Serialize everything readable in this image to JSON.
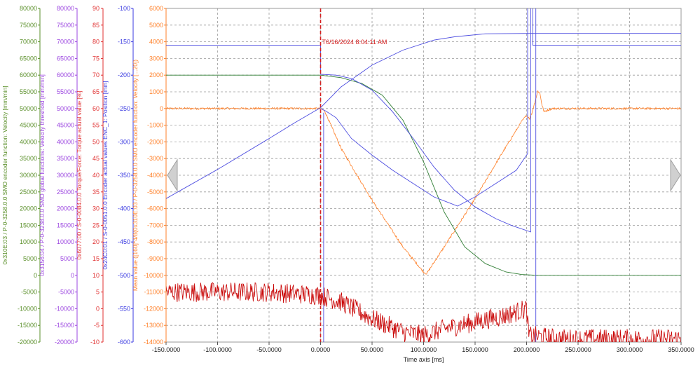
{
  "chart_data": {
    "type": "line",
    "grid": true,
    "x_axis": {
      "label": "Time axis [ms]",
      "range": [
        -150,
        350
      ],
      "ticks": [
        "-150.0000",
        "-100.0000",
        "-50.0000",
        "0.0000",
        "50.0000",
        "100.0000",
        "150.0000",
        "200.0000",
        "250.0000",
        "300.0000",
        "350.0000"
      ]
    },
    "y_axes": [
      {
        "id": "velocity",
        "label": "0x310E:03 / P-0-3258.0.0 SMO encoder function: Velocity [mm/min]",
        "color": "#5a8f29",
        "range": [
          -20000,
          80000
        ],
        "ticks": [
          "80000",
          "75000",
          "70000",
          "65000",
          "60000",
          "55000",
          "50000",
          "45000",
          "40000",
          "35000",
          "30000",
          "25000",
          "20000",
          "15000",
          "10000",
          "5000",
          "0",
          "-5000",
          "-10000",
          "-15000",
          "-20000"
        ]
      },
      {
        "id": "threshold",
        "label": "0x3156:04 / P-0-3238.0.0 SMO global functions: Velocity threshold [mm/min]",
        "color": "#9b45e0",
        "range": [
          -20000,
          80000
        ],
        "ticks": [
          "80000",
          "75000",
          "70000",
          "65000",
          "60000",
          "55000",
          "50000",
          "45000",
          "40000",
          "35000",
          "30000",
          "25000",
          "20000",
          "15000",
          "10000",
          "5000",
          "0",
          "-5000",
          "-10000",
          "-15000",
          "-20000"
        ]
      },
      {
        "id": "torque",
        "label": "0x6077:00 / S-0-0084.0.0 Torque/Force: Torque actual value [%]",
        "color": "#e03030",
        "range": [
          -10,
          90
        ],
        "ticks": [
          "90",
          "85",
          "80",
          "75",
          "70",
          "65",
          "60",
          "55",
          "50",
          "45",
          "40",
          "35",
          "30",
          "25",
          "20",
          "15",
          "10",
          "5",
          "0",
          "-5",
          "-10"
        ]
      },
      {
        "id": "position",
        "label": "0x24C0:01 / S-0-0051.0.0 Encoder actual values ENC_1: Position [mm]",
        "color": "#3a3ae0",
        "range": [
          -600,
          -100
        ],
        "ticks": [
          "-100",
          "-150",
          "-200",
          "-250",
          "-300",
          "-350",
          "-400",
          "-450",
          "-500",
          "-550",
          "-600"
        ]
      },
      {
        "id": "mean",
        "label": "Mean value ([160]*4/8(0x310E:03 / P-0-3258.0.0 SMO encoder function: Velocity [...20])",
        "color": "#ff7f27",
        "range": [
          -14000,
          6000
        ],
        "ticks": [
          "6000",
          "5000",
          "4000",
          "3000",
          "2000",
          "1000",
          "0",
          "-1000",
          "-2000",
          "-3000",
          "-4000",
          "-5000",
          "-6000",
          "-7000",
          "-8000",
          "-9000",
          "-10000",
          "-11000",
          "-12000",
          "-13000",
          "-14000"
        ]
      }
    ],
    "cursor": {
      "x": 0,
      "label": "T6/16/2024 8:04:11 AM",
      "color": "#d42020"
    },
    "series": [
      {
        "axis": "mean",
        "color": "#ff7f27",
        "noise": 60,
        "points": [
          [
            -150,
            0
          ],
          [
            -10,
            0
          ],
          [
            0,
            0
          ],
          [
            4,
            -150
          ],
          [
            20,
            -2400
          ],
          [
            50,
            -5500
          ],
          [
            80,
            -8300
          ],
          [
            100,
            -9800
          ],
          [
            103,
            -9900
          ],
          [
            120,
            -8300
          ],
          [
            150,
            -5400
          ],
          [
            175,
            -2800
          ],
          [
            195,
            -800
          ],
          [
            200,
            -400
          ],
          [
            203,
            -600
          ],
          [
            205,
            -300
          ],
          [
            209,
            600
          ],
          [
            211,
            1050
          ],
          [
            213,
            900
          ],
          [
            215,
            200
          ],
          [
            217,
            -200
          ],
          [
            220,
            -100
          ],
          [
            225,
            0
          ],
          [
            350,
            0
          ]
        ]
      },
      {
        "axis": "mean",
        "color": "#2e7d32",
        "noise": 0,
        "points": [
          [
            -150,
            2000
          ],
          [
            0,
            2000
          ],
          [
            20,
            1850
          ],
          [
            40,
            1500
          ],
          [
            60,
            800
          ],
          [
            80,
            -700
          ],
          [
            100,
            -3200
          ],
          [
            120,
            -6200
          ],
          [
            140,
            -8300
          ],
          [
            160,
            -9300
          ],
          [
            180,
            -9800
          ],
          [
            195,
            -9950
          ],
          [
            210,
            -10000
          ],
          [
            350,
            -10000
          ]
        ]
      },
      {
        "axis": "mean",
        "color": "#4d4de0",
        "noise": 0,
        "points": [
          [
            -150,
            3800
          ],
          [
            0,
            3800
          ],
          [
            0,
            2050
          ],
          [
            15,
            2000
          ],
          [
            30,
            1800
          ],
          [
            50,
            1100
          ],
          [
            70,
            -200
          ],
          [
            90,
            -1800
          ],
          [
            110,
            -3500
          ],
          [
            130,
            -4900
          ],
          [
            150,
            -5900
          ],
          [
            170,
            -6600
          ],
          [
            185,
            -7000
          ],
          [
            204,
            -7400
          ],
          [
            204,
            6000
          ]
        ]
      },
      {
        "axis": "mean",
        "color": "#4d4de0",
        "noise": 0,
        "points": [
          [
            -150,
            -5400
          ],
          [
            -100,
            -3650
          ],
          [
            -50,
            -1800
          ],
          [
            -25,
            -850
          ],
          [
            0,
            50
          ],
          [
            20,
            1300
          ],
          [
            50,
            2600
          ],
          [
            80,
            3500
          ],
          [
            110,
            4100
          ],
          [
            130,
            4300
          ],
          [
            160,
            4480
          ],
          [
            200,
            4500
          ],
          [
            350,
            4500
          ]
        ]
      },
      {
        "axis": "mean",
        "color": "#4d4de0",
        "noise": 0,
        "points": [
          [
            0,
            0
          ],
          [
            5,
            -150
          ],
          [
            15,
            -550
          ],
          [
            30,
            -1800
          ],
          [
            50,
            -2800
          ],
          [
            70,
            -3700
          ],
          [
            90,
            -4500
          ],
          [
            110,
            -5300
          ],
          [
            133,
            -5850
          ],
          [
            150,
            -5300
          ],
          [
            170,
            -4500
          ],
          [
            190,
            -3700
          ],
          [
            201,
            -2700
          ],
          [
            201,
            6000
          ]
        ]
      },
      {
        "axis": "mean",
        "color": "#4d4de0",
        "noise": 0,
        "points": [
          [
            206,
            6000
          ],
          [
            206,
            3800
          ],
          [
            350,
            3800
          ]
        ]
      },
      {
        "axis": "mean",
        "color": "#4d4de0",
        "noise": 0,
        "points": [
          [
            209,
            6000
          ],
          [
            209,
            -14000
          ]
        ]
      },
      {
        "axis": "mean",
        "color": "#4d4de0",
        "noise": 0,
        "points": [
          [
            3,
            -250
          ],
          [
            3,
            -14000
          ]
        ]
      },
      {
        "axis": "torque",
        "color": "#c80000",
        "noise": 3,
        "points": [
          [
            -150,
            5
          ],
          [
            -50,
            5
          ],
          [
            0,
            4
          ],
          [
            20,
            2
          ],
          [
            50,
            -3
          ],
          [
            80,
            -7
          ],
          [
            100,
            -8
          ],
          [
            120,
            -6
          ],
          [
            150,
            -4
          ],
          [
            180,
            -2
          ],
          [
            200,
            0
          ],
          [
            202,
            -8
          ],
          [
            230,
            -9
          ],
          [
            350,
            -9
          ]
        ]
      }
    ]
  }
}
